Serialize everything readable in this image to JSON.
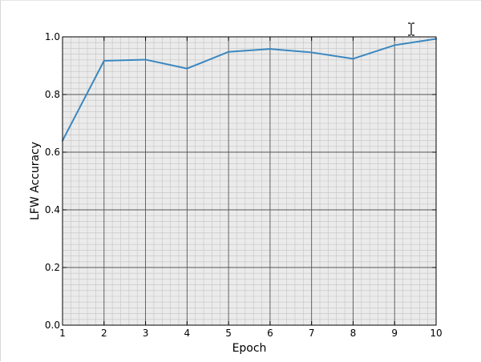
{
  "chart_data": {
    "type": "line",
    "xlabel": "Epoch",
    "ylabel": "LFW Accuracy",
    "xlim": [
      1,
      10
    ],
    "ylim": [
      0.0,
      1.0
    ],
    "x_ticks": [
      "1",
      "2",
      "3",
      "4",
      "5",
      "6",
      "7",
      "8",
      "9",
      "10"
    ],
    "y_ticks": [
      "0.0",
      "0.2",
      "0.4",
      "0.6",
      "0.8",
      "1.0"
    ],
    "grid": true,
    "minor_grid": true,
    "series": [
      {
        "color": "#3a87c0",
        "x": [
          1,
          2,
          3,
          4,
          5,
          6,
          7,
          8,
          9,
          10
        ],
        "y": [
          0.64,
          0.917,
          0.921,
          0.89,
          0.948,
          0.958,
          0.946,
          0.924,
          0.971,
          0.993
        ]
      }
    ]
  },
  "colors": {
    "plot_background": "#ebebeb",
    "major_grid": "#555555",
    "minor_grid": "#c4c4c4",
    "axes_frame": "#000000"
  },
  "cursor": {
    "icon": "text-cursor-icon"
  }
}
